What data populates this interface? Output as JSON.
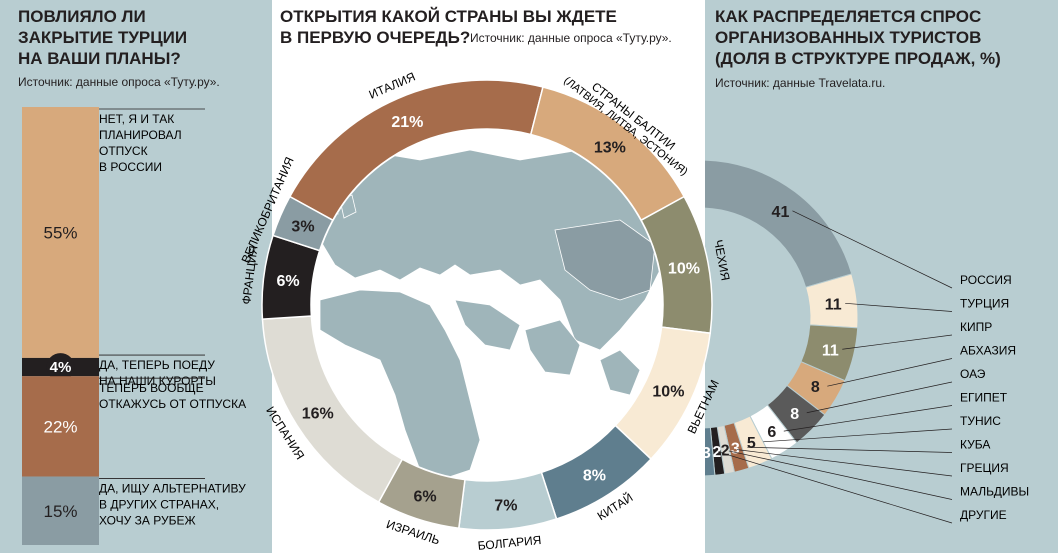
{
  "colors": {
    "panel_bg": "#b8cdd1",
    "tan": "#d7a97c",
    "brown": "#a66c4b",
    "black": "#231f20",
    "bluegray": "#8a9ca3",
    "olive": "#8d8c6e",
    "cream": "#f8ead4",
    "lightgray": "#dedcd4",
    "steel": "#5f7e8e",
    "darkgray": "#5a5a5a",
    "map_land": "#9fb5ba"
  },
  "left": {
    "title_lines": [
      "ПОВЛИЯЛО ЛИ",
      "ЗАКРЫТИЕ ТУРЦИИ",
      "НА ВАШИ ПЛАНЫ?"
    ],
    "source": "Источник: данные опроса «Туту.ру»."
  },
  "center": {
    "title_lines": [
      "ОТКРЫТИЯ КАКОЙ СТРАНЫ ВЫ ЖДЕТЕ",
      "В ПЕРВУЮ ОЧЕРЕДЬ?"
    ],
    "source": "Источник: данные опроса «Туту.ру»."
  },
  "right": {
    "title_lines": [
      "КАК РАСПРЕДЕЛЯЕТСЯ СПРОС",
      "ОРГАНИЗОВАННЫХ ТУРИСТОВ",
      "(ДОЛЯ В СТРУКТУРЕ ПРОДАЖ, %)"
    ],
    "source": "Источник: данные Travelata.ru."
  },
  "chart_data": [
    {
      "type": "bar",
      "stacked": true,
      "orientation": "vertical",
      "title": "ПОВЛИЯЛО ЛИ ЗАКРЫТИЕ ТУРЦИИ НА ВАШИ ПЛАНЫ?",
      "segments": [
        {
          "value": 55,
          "label": "55%",
          "text_lines": [
            "НЕТ, Я И ТАК",
            "ПЛАНИРОВАЛ",
            "ОТПУСК",
            "В РОССИИ"
          ],
          "color": "#d7a97c"
        },
        {
          "value": 4,
          "label": "4%",
          "text_lines": [
            "ДА, ТЕПЕРЬ ПОЕДУ",
            "НА НАШИ КУРОРТЫ"
          ],
          "color": "#231f20"
        },
        {
          "value": 22,
          "label": "22%",
          "text_lines": [
            "ТЕПЕРЬ ВООБЩЕ",
            "ОТКАЖУСЬ ОТ ОТПУСКА"
          ],
          "color": "#a66c4b"
        },
        {
          "value": 15,
          "label": "15%",
          "text_lines": [
            "ДА, ИЩУ АЛЬТЕРНАТИВУ",
            "В ДРУГИХ СТРАНАХ,",
            "ХОЧУ ЗА РУБЕЖ"
          ],
          "color": "#8a9ca3"
        }
      ]
    },
    {
      "type": "pie",
      "donut": true,
      "title": "ОТКРЫТИЯ КАКОЙ СТРАНЫ ВЫ ЖДЕТЕ В ПЕРВУЮ ОЧЕРЕДЬ?",
      "slices": [
        {
          "name": "ИТАЛИЯ",
          "value": 21,
          "label": "21%",
          "color": "#a66c4b"
        },
        {
          "name": "СТРАНЫ БАЛТИИ",
          "sub": "(ЛАТВИЯ, ЛИТВА, ЭСТОНИЯ)",
          "value": 13,
          "label": "13%",
          "color": "#d7a97c"
        },
        {
          "name": "ЧЕХИЯ",
          "value": 10,
          "label": "10%",
          "color": "#8d8c6e"
        },
        {
          "name": "ВЬЕТНАМ",
          "value": 10,
          "label": "10%",
          "color": "#f8ead4"
        },
        {
          "name": "КИТАЙ",
          "value": 8,
          "label": "8%",
          "color": "#5f7e8e"
        },
        {
          "name": "БОЛГАРИЯ",
          "value": 7,
          "label": "7%",
          "color": "#b8cdd1"
        },
        {
          "name": "ИЗРАИЛЬ",
          "value": 6,
          "label": "6%",
          "color": "#a5a18e"
        },
        {
          "name": "ИСПАНИЯ",
          "value": 16,
          "label": "16%",
          "color": "#dedcd4"
        },
        {
          "name": "ФРАНЦИЯ",
          "value": 6,
          "label": "6%",
          "color": "#231f20"
        },
        {
          "name": "ВЕЛИКОБРИТАНИЯ",
          "value": 3,
          "label": "3%",
          "color": "#8a9ca3"
        }
      ]
    },
    {
      "type": "pie",
      "donut": true,
      "title": "КАК РАСПРЕДЕЛЯЕТСЯ СПРОС ОРГАНИЗОВАННЫХ ТУРИСТОВ (ДОЛЯ В СТРУКТУРЕ ПРОДАЖ, %)",
      "slices": [
        {
          "name": "РОССИЯ",
          "value": 41,
          "label": "41",
          "color": "#8a9ca3"
        },
        {
          "name": "ТУРЦИЯ",
          "value": 11,
          "label": "11",
          "color": "#f8ead4"
        },
        {
          "name": "КИПР",
          "value": 11,
          "label": "11",
          "color": "#8d8c6e"
        },
        {
          "name": "АБХАЗИЯ",
          "value": 8,
          "label": "8",
          "color": "#d7a97c"
        },
        {
          "name": "ОАЭ",
          "value": 8,
          "label": "8",
          "color": "#5a5a5a"
        },
        {
          "name": "ЕГИПЕТ",
          "value": 6,
          "label": "6",
          "color": "#ffffff"
        },
        {
          "name": "ТУНИС",
          "value": 5,
          "label": "5",
          "color": "#f8ead4"
        },
        {
          "name": "КУБА",
          "value": 3,
          "label": "3",
          "color": "#a66c4b"
        },
        {
          "name": "ГРЕЦИЯ",
          "value": 2,
          "label": "2",
          "color": "#dedcd4"
        },
        {
          "name": "МАЛЬДИВЫ",
          "value": 2,
          "label": "2",
          "color": "#231f20"
        },
        {
          "name": "ДРУГИЕ",
          "value": 3,
          "label": "3",
          "color": "#5f7e8e"
        }
      ]
    }
  ]
}
